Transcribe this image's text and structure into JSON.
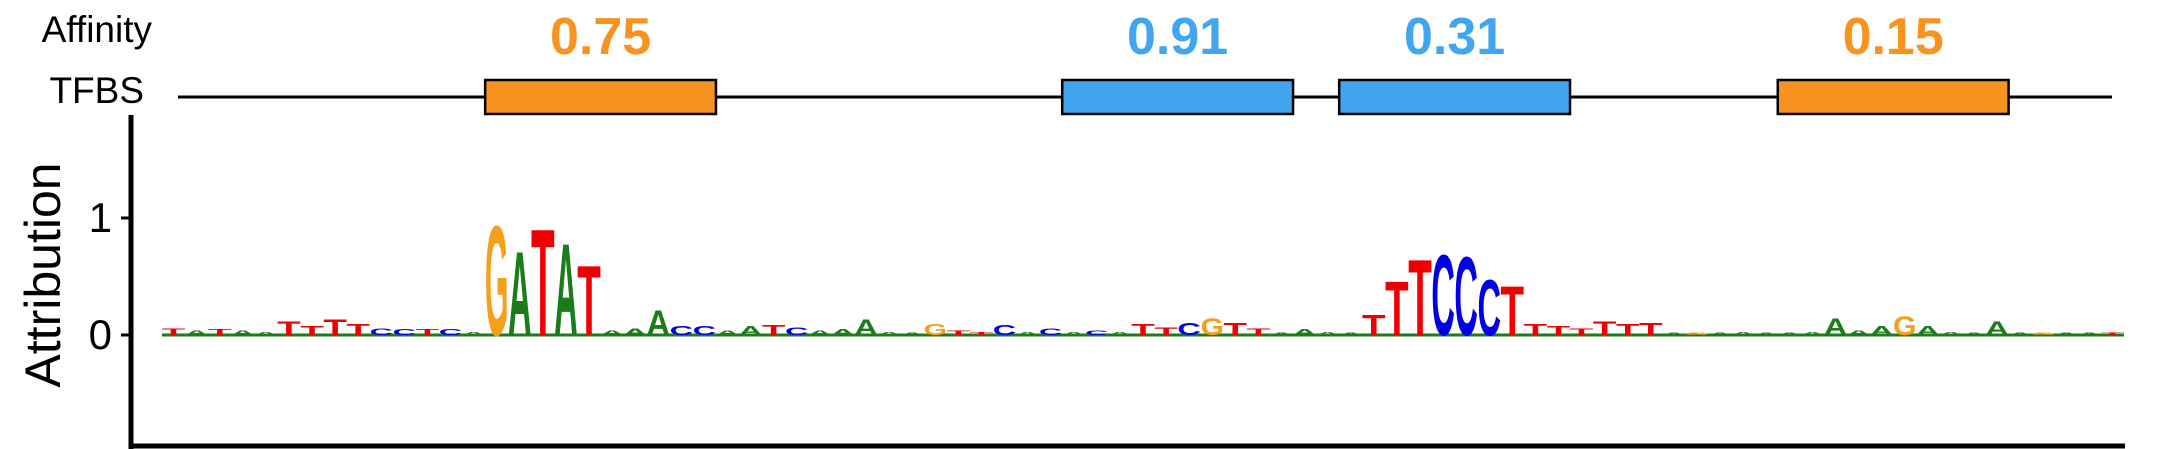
{
  "chart_data": {
    "type": "sequence_logo",
    "ylabel": "Attribution",
    "yticks": [
      "0",
      "1"
    ],
    "ylim": [
      -0.9,
      1.85
    ],
    "row_labels": {
      "affinity": "Affinity",
      "tfbs": "TFBS"
    },
    "colors": {
      "A": "#1a7d1a",
      "C": "#0000e6",
      "G": "#f5a01a",
      "T": "#ee0000",
      "site_orange": "#f7931e",
      "site_blue": "#42a5f0",
      "axis": "#000000"
    },
    "sequence_length": 85,
    "tfbs": [
      {
        "start": 14,
        "end": 24,
        "affinity": "0.75",
        "color": "site_orange"
      },
      {
        "start": 39,
        "end": 49,
        "affinity": "0.91",
        "color": "site_blue"
      },
      {
        "start": 51,
        "end": 61,
        "affinity": "0.31",
        "color": "site_blue"
      },
      {
        "start": 70,
        "end": 80,
        "affinity": "0.15",
        "color": "site_orange"
      }
    ],
    "positions": [
      {
        "letter": "T",
        "value": 0.06
      },
      {
        "letter": "A",
        "value": 0.04
      },
      {
        "letter": "T",
        "value": 0.05
      },
      {
        "letter": "A",
        "value": 0.04
      },
      {
        "letter": "A",
        "value": 0.03
      },
      {
        "letter": "T",
        "value": 0.12
      },
      {
        "letter": "T",
        "value": 0.08
      },
      {
        "letter": "T",
        "value": 0.14
      },
      {
        "letter": "T",
        "value": 0.1
      },
      {
        "letter": "C",
        "value": 0.06
      },
      {
        "letter": "C",
        "value": 0.05
      },
      {
        "letter": "T",
        "value": 0.05
      },
      {
        "letter": "C",
        "value": 0.05
      },
      {
        "letter": "A",
        "value": 0.03
      },
      {
        "letter": "G",
        "value": 0.98
      },
      {
        "letter": "A",
        "value": 0.75
      },
      {
        "letter": "T",
        "value": 0.95
      },
      {
        "letter": "A",
        "value": 0.82
      },
      {
        "letter": "T",
        "value": 0.62
      },
      {
        "letter": "A",
        "value": 0.04
      },
      {
        "letter": "A",
        "value": 0.06
      },
      {
        "letter": "A",
        "value": 0.22
      },
      {
        "letter": "C",
        "value": 0.08
      },
      {
        "letter": "C",
        "value": 0.08
      },
      {
        "letter": "A",
        "value": 0.04
      },
      {
        "letter": "A",
        "value": 0.08
      },
      {
        "letter": "T",
        "value": 0.09
      },
      {
        "letter": "C",
        "value": 0.07
      },
      {
        "letter": "A",
        "value": 0.04
      },
      {
        "letter": "A",
        "value": 0.05
      },
      {
        "letter": "A",
        "value": 0.14
      },
      {
        "letter": "A",
        "value": 0.03
      },
      {
        "letter": "A",
        "value": 0.02
      },
      {
        "letter": "G",
        "value": 0.1
      },
      {
        "letter": "T",
        "value": 0.04
      },
      {
        "letter": "T",
        "value": 0.03
      },
      {
        "letter": "C",
        "value": 0.09
      },
      {
        "letter": "A",
        "value": 0.03
      },
      {
        "letter": "C",
        "value": 0.06
      },
      {
        "letter": "A",
        "value": 0.03
      },
      {
        "letter": "C",
        "value": 0.04
      },
      {
        "letter": "A",
        "value": 0.03
      },
      {
        "letter": "T",
        "value": 0.1
      },
      {
        "letter": "T",
        "value": 0.07
      },
      {
        "letter": "C",
        "value": 0.11
      },
      {
        "letter": "G",
        "value": 0.15
      },
      {
        "letter": "T",
        "value": 0.11
      },
      {
        "letter": "T",
        "value": 0.06
      },
      {
        "letter": "A",
        "value": 0.02
      },
      {
        "letter": "A",
        "value": 0.05
      },
      {
        "letter": "A",
        "value": 0.03
      },
      {
        "letter": "A",
        "value": 0.02
      },
      {
        "letter": "T",
        "value": 0.18
      },
      {
        "letter": "T",
        "value": 0.48
      },
      {
        "letter": "T",
        "value": 0.68
      },
      {
        "letter": "C",
        "value": 0.72
      },
      {
        "letter": "C",
        "value": 0.7
      },
      {
        "letter": "C",
        "value": 0.5
      },
      {
        "letter": "T",
        "value": 0.44
      },
      {
        "letter": "T",
        "value": 0.1
      },
      {
        "letter": "T",
        "value": 0.08
      },
      {
        "letter": "T",
        "value": 0.06
      },
      {
        "letter": "T",
        "value": 0.12
      },
      {
        "letter": "T",
        "value": 0.1
      },
      {
        "letter": "T",
        "value": 0.11
      },
      {
        "letter": "A",
        "value": 0.02
      },
      {
        "letter": "G",
        "value": 0.02
      },
      {
        "letter": "A",
        "value": 0.02
      },
      {
        "letter": "A",
        "value": 0.03
      },
      {
        "letter": "A",
        "value": 0.02
      },
      {
        "letter": "A",
        "value": 0.02
      },
      {
        "letter": "A",
        "value": 0.03
      },
      {
        "letter": "A",
        "value": 0.15
      },
      {
        "letter": "A",
        "value": 0.04
      },
      {
        "letter": "A",
        "value": 0.08
      },
      {
        "letter": "G",
        "value": 0.17
      },
      {
        "letter": "A",
        "value": 0.08
      },
      {
        "letter": "A",
        "value": 0.03
      },
      {
        "letter": "A",
        "value": 0.02
      },
      {
        "letter": "A",
        "value": 0.12
      },
      {
        "letter": "A",
        "value": 0.02
      },
      {
        "letter": "G",
        "value": 0.02
      },
      {
        "letter": "A",
        "value": 0.02
      },
      {
        "letter": "A",
        "value": 0.02
      },
      {
        "letter": "T",
        "value": 0.02
      }
    ]
  }
}
